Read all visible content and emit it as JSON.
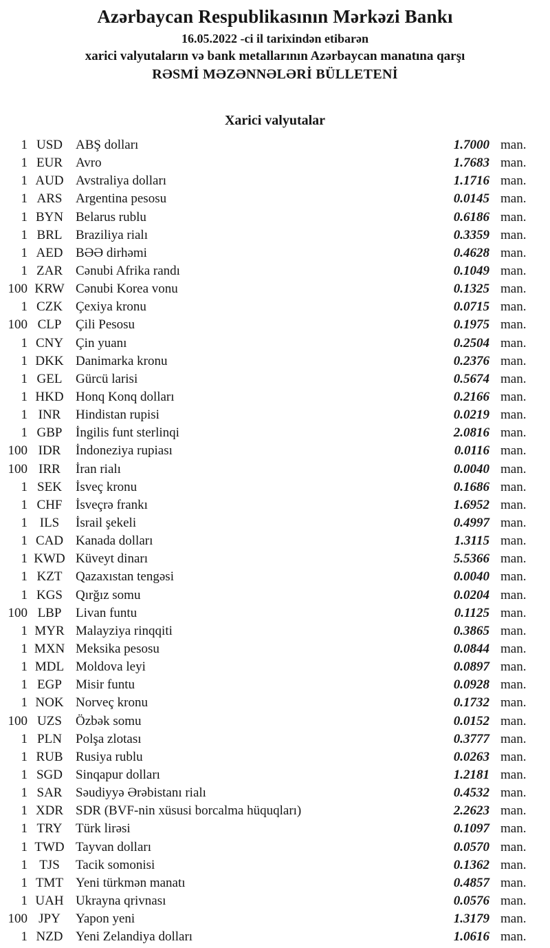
{
  "header": {
    "bank_name": "Azərbaycan Respublikasının Mərkəzi Bankı",
    "date_line": "16.05.2022 -ci il tarixindən etibarən",
    "subject_line": "xarici valyutaların və bank metallarının Azərbaycan manatına qarşı",
    "bulletin_line": "RƏSMİ MƏZƏNNƏLƏRİ BÜLLETENİ"
  },
  "section": {
    "title": "Xarici valyutalar"
  },
  "unit_label": "man.",
  "rates": [
    {
      "nominal": "1",
      "code": "USD",
      "name": "ABŞ dolları",
      "rate": "1.7000"
    },
    {
      "nominal": "1",
      "code": "EUR",
      "name": "Avro",
      "rate": "1.7683"
    },
    {
      "nominal": "1",
      "code": "AUD",
      "name": "Avstraliya dolları",
      "rate": "1.1716"
    },
    {
      "nominal": "1",
      "code": "ARS",
      "name": "Argentina pesosu",
      "rate": "0.0145"
    },
    {
      "nominal": "1",
      "code": "BYN",
      "name": "Belarus rublu",
      "rate": "0.6186"
    },
    {
      "nominal": "1",
      "code": "BRL",
      "name": "Braziliya rialı",
      "rate": "0.3359"
    },
    {
      "nominal": "1",
      "code": "AED",
      "name": "BƏƏ dirhəmi",
      "rate": "0.4628"
    },
    {
      "nominal": "1",
      "code": "ZAR",
      "name": "Cənubi Afrika randı",
      "rate": "0.1049"
    },
    {
      "nominal": "100",
      "code": "KRW",
      "name": "Cənubi Korea vonu",
      "rate": "0.1325"
    },
    {
      "nominal": "1",
      "code": "CZK",
      "name": "Çexiya kronu",
      "rate": "0.0715"
    },
    {
      "nominal": "100",
      "code": "CLP",
      "name": "Çili Pesosu",
      "rate": "0.1975"
    },
    {
      "nominal": "1",
      "code": "CNY",
      "name": "Çin yuanı",
      "rate": "0.2504"
    },
    {
      "nominal": "1",
      "code": "DKK",
      "name": "Danimarka kronu",
      "rate": "0.2376"
    },
    {
      "nominal": "1",
      "code": "GEL",
      "name": "Gürcü larisi",
      "rate": "0.5674"
    },
    {
      "nominal": "1",
      "code": "HKD",
      "name": "Honq Konq dolları",
      "rate": "0.2166"
    },
    {
      "nominal": "1",
      "code": "INR",
      "name": "Hindistan rupisi",
      "rate": "0.0219"
    },
    {
      "nominal": "1",
      "code": "GBP",
      "name": "İngilis funt sterlinqi",
      "rate": "2.0816"
    },
    {
      "nominal": "100",
      "code": "IDR",
      "name": "İndoneziya rupiası",
      "rate": "0.0116"
    },
    {
      "nominal": "100",
      "code": "IRR",
      "name": "İran rialı",
      "rate": "0.0040"
    },
    {
      "nominal": "1",
      "code": "SEK",
      "name": "İsveç kronu",
      "rate": "0.1686"
    },
    {
      "nominal": "1",
      "code": "CHF",
      "name": "İsveçrə frankı",
      "rate": "1.6952"
    },
    {
      "nominal": "1",
      "code": "ILS",
      "name": "İsrail şekeli",
      "rate": "0.4997"
    },
    {
      "nominal": "1",
      "code": "CAD",
      "name": "Kanada dolları",
      "rate": "1.3115"
    },
    {
      "nominal": "1",
      "code": "KWD",
      "name": "Küveyt dinarı",
      "rate": "5.5366"
    },
    {
      "nominal": "1",
      "code": "KZT",
      "name": "Qazaxıstan tengəsi",
      "rate": "0.0040"
    },
    {
      "nominal": "1",
      "code": "KGS",
      "name": "Qırğız somu",
      "rate": "0.0204"
    },
    {
      "nominal": "100",
      "code": "LBP",
      "name": "Livan funtu",
      "rate": "0.1125"
    },
    {
      "nominal": "1",
      "code": "MYR",
      "name": "Malayziya rinqqiti",
      "rate": "0.3865"
    },
    {
      "nominal": "1",
      "code": "MXN",
      "name": "Meksika pesosu",
      "rate": "0.0844"
    },
    {
      "nominal": "1",
      "code": "MDL",
      "name": "Moldova leyi",
      "rate": "0.0897"
    },
    {
      "nominal": "1",
      "code": "EGP",
      "name": "Misir funtu",
      "rate": "0.0928"
    },
    {
      "nominal": "1",
      "code": "NOK",
      "name": "Norveç kronu",
      "rate": "0.1732"
    },
    {
      "nominal": "100",
      "code": "UZS",
      "name": "Özbək somu",
      "rate": "0.0152"
    },
    {
      "nominal": "1",
      "code": "PLN",
      "name": "Polşa zlotası",
      "rate": "0.3777"
    },
    {
      "nominal": "1",
      "code": "RUB",
      "name": "Rusiya rublu",
      "rate": "0.0263"
    },
    {
      "nominal": "1",
      "code": "SGD",
      "name": "Sinqapur dolları",
      "rate": "1.2181"
    },
    {
      "nominal": "1",
      "code": "SAR",
      "name": "Səudiyyə Ərəbistanı rialı",
      "rate": "0.4532"
    },
    {
      "nominal": "1",
      "code": "XDR",
      "name": "SDR (BVF-nin xüsusi borcalma hüquqları)",
      "rate": "2.2623"
    },
    {
      "nominal": "1",
      "code": "TRY",
      "name": "Türk lirəsi",
      "rate": "0.1097"
    },
    {
      "nominal": "1",
      "code": "TWD",
      "name": "Tayvan dolları",
      "rate": "0.0570"
    },
    {
      "nominal": "1",
      "code": "TJS",
      "name": "Tacik somonisi",
      "rate": "0.1362"
    },
    {
      "nominal": "1",
      "code": "TMT",
      "name": "Yeni türkmən manatı",
      "rate": "0.4857"
    },
    {
      "nominal": "1",
      "code": "UAH",
      "name": "Ukrayna qrivnası",
      "rate": "0.0576"
    },
    {
      "nominal": "100",
      "code": "JPY",
      "name": "Yapon yeni",
      "rate": "1.3179"
    },
    {
      "nominal": "1",
      "code": "NZD",
      "name": "Yeni Zelandiya dolları",
      "rate": "1.0616"
    }
  ]
}
